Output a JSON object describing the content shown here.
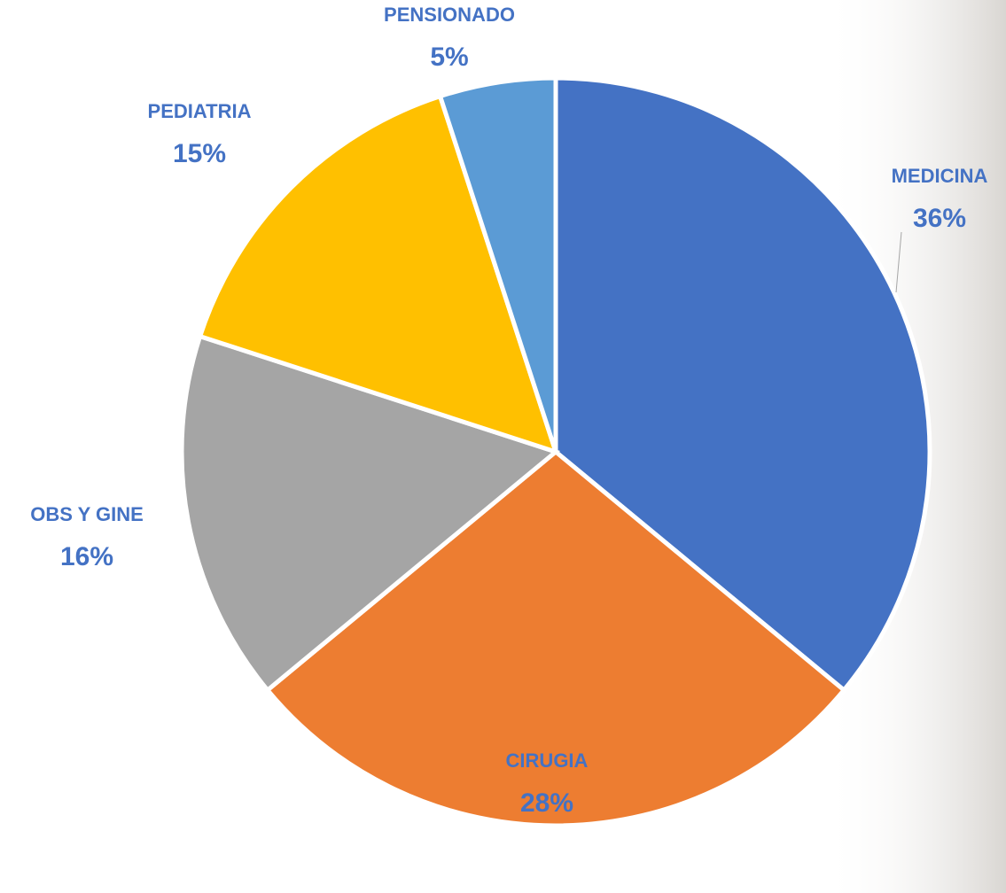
{
  "chart_data": {
    "type": "pie",
    "categories": [
      "MEDICINA",
      "CIRUGIA",
      "OBS Y GINE",
      "PEDIATRIA",
      "PENSIONADO"
    ],
    "values": [
      36,
      28,
      16,
      15,
      5
    ],
    "value_labels": [
      "36%",
      "28%",
      "16%",
      "15%",
      "5%"
    ],
    "colors": [
      "#4472c4",
      "#ed7d31",
      "#a5a5a5",
      "#ffc000",
      "#5b9bd5"
    ]
  }
}
